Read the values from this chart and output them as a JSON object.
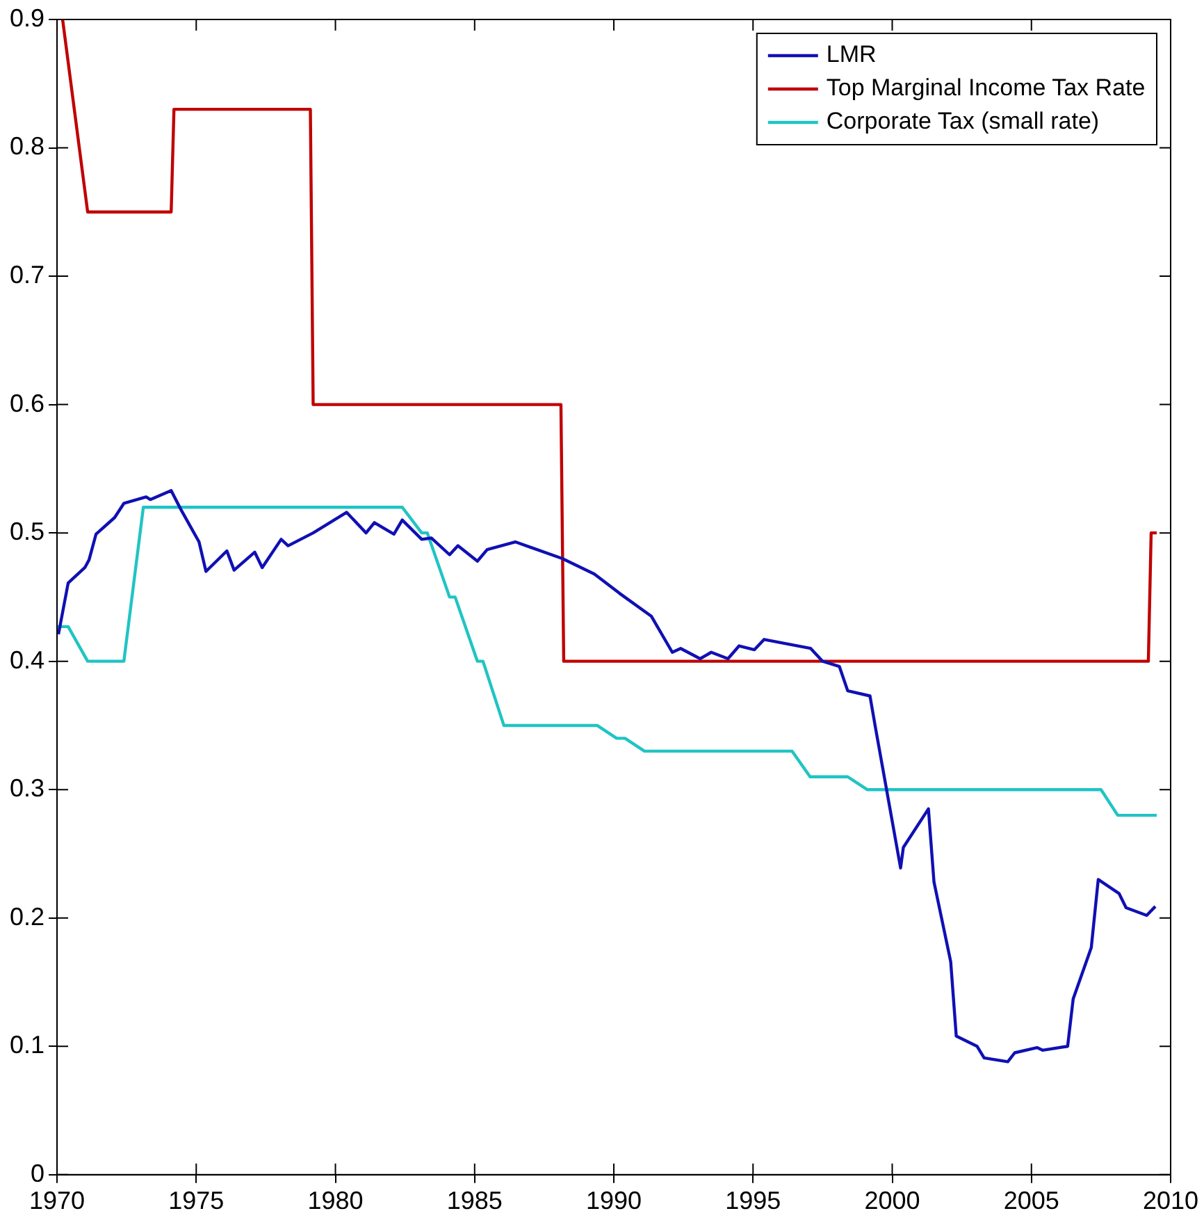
{
  "chart_data": {
    "type": "line",
    "xlim": [
      1970,
      2010
    ],
    "xticks": [
      1970,
      1975,
      1980,
      1985,
      1990,
      1995,
      2000,
      2005,
      2010
    ],
    "ylim": [
      0,
      0.9
    ],
    "yticks": [
      0,
      0.1,
      0.2,
      0.3,
      0.4,
      0.5,
      0.6,
      0.7,
      0.8,
      0.9
    ],
    "grid": false,
    "legend": "top right",
    "marker": "none",
    "line_style": "solid",
    "series": [
      {
        "name": "LMR",
        "color": "#1010b4",
        "x": [
          1970.05,
          1970.4,
          1971.0,
          1971.15,
          1971.4,
          1972.07,
          1972.4,
          1973.2,
          1973.35,
          1974.1,
          1974.43,
          1975.1,
          1975.35,
          1976.1,
          1976.36,
          1977.1,
          1977.37,
          1978.05,
          1978.3,
          1979.2,
          1980.4,
          1981.1,
          1981.4,
          1982.1,
          1982.4,
          1983.1,
          1983.45,
          1984.1,
          1984.4,
          1985.1,
          1985.45,
          1986.46,
          1988.15,
          1989.3,
          1990.2,
          1991.35,
          1992.1,
          1992.4,
          1993.1,
          1993.5,
          1994.1,
          1994.5,
          1995.05,
          1995.4,
          1997.07,
          1997.5,
          1998.1,
          1998.4,
          1999.2,
          1999.4,
          2000.3,
          2000.4,
          2001.3,
          2001.5,
          2002.1,
          2002.3,
          2003.05,
          2003.3,
          2004.15,
          2004.4,
          2005.2,
          2005.4,
          2006.3,
          2006.5,
          2007.15,
          2007.4,
          2008.15,
          2008.4,
          2009.14,
          2009.45
        ],
        "values": [
          0.421,
          0.461,
          0.473,
          0.479,
          0.499,
          0.512,
          0.523,
          0.528,
          0.526,
          0.533,
          0.519,
          0.493,
          0.47,
          0.486,
          0.471,
          0.485,
          0.473,
          0.495,
          0.49,
          0.5,
          0.516,
          0.5,
          0.508,
          0.499,
          0.51,
          0.495,
          0.496,
          0.483,
          0.49,
          0.478,
          0.487,
          0.493,
          0.48,
          0.468,
          0.453,
          0.435,
          0.407,
          0.41,
          0.402,
          0.407,
          0.402,
          0.412,
          0.409,
          0.417,
          0.41,
          0.4,
          0.396,
          0.377,
          0.373,
          0.348,
          0.239,
          0.255,
          0.285,
          0.228,
          0.166,
          0.108,
          0.1,
          0.091,
          0.088,
          0.095,
          0.099,
          0.097,
          0.1,
          0.137,
          0.177,
          0.23,
          0.219,
          0.208,
          0.202,
          0.209
        ]
      },
      {
        "name": "Top Marginal Income Tax Rate",
        "color": "#c00000",
        "x": [
          1970.2,
          1971.1,
          1974.1,
          1974.2,
          1979.1,
          1979.2,
          1988.1,
          1988.2,
          2009.2,
          2009.3,
          2009.5
        ],
        "values": [
          0.9,
          0.75,
          0.75,
          0.83,
          0.83,
          0.6,
          0.6,
          0.4,
          0.4,
          0.5,
          0.5
        ]
      },
      {
        "name": "Corporate Tax (small rate)",
        "color": "#20c4c4",
        "x": [
          1970.0,
          1970.4,
          1971.1,
          1972.4,
          1973.1,
          1982.4,
          1983.1,
          1983.3,
          1984.1,
          1984.3,
          1985.1,
          1985.3,
          1986.05,
          1989.4,
          1990.1,
          1990.4,
          1991.1,
          1996.4,
          1997.05,
          1998.4,
          1999.1,
          2007.5,
          2008.1,
          2009.5
        ],
        "values": [
          0.427,
          0.427,
          0.4,
          0.4,
          0.52,
          0.52,
          0.5,
          0.5,
          0.45,
          0.45,
          0.4,
          0.4,
          0.35,
          0.35,
          0.34,
          0.34,
          0.33,
          0.33,
          0.31,
          0.31,
          0.3,
          0.3,
          0.28,
          0.28
        ]
      }
    ]
  }
}
